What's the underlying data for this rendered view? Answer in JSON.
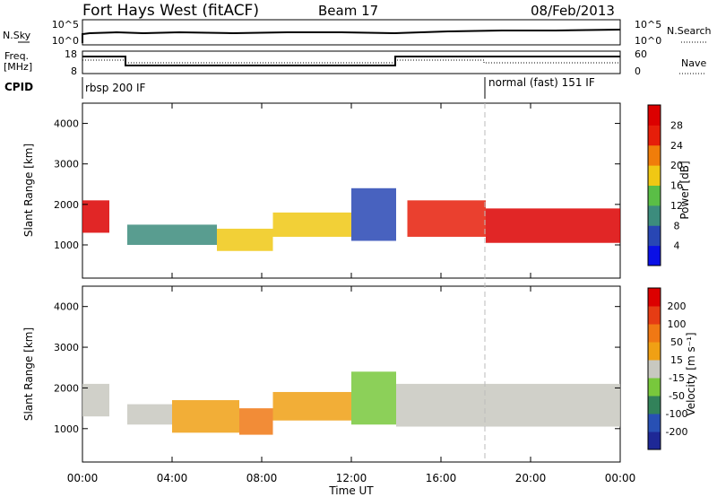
{
  "header": {
    "station": "Fort Hays West (fitACF)",
    "beam": "Beam 17",
    "date": "08/Feb/2013"
  },
  "top_panels": {
    "nsky_label": "N.Sky",
    "nsky_ticks": [
      "10^5",
      "10^0"
    ],
    "nsearch_label": "N.Search",
    "nsearch_ticks": [
      "10^5",
      "10^0"
    ],
    "freq_label_1": "Freq.",
    "freq_label_2": "[MHz]",
    "freq_ticks": [
      "18",
      "8"
    ],
    "nave_label": "Nave",
    "nave_ticks": [
      "60",
      "0"
    ],
    "cpid_label": "CPID",
    "cpid_segments": [
      {
        "label": "rbsp 200 IF",
        "start_hour": 0,
        "end_hour": 18
      },
      {
        "label": "normal (fast) 151 IF",
        "start_hour": 18,
        "end_hour": 24
      }
    ]
  },
  "chart_data": [
    {
      "type": "heatmap",
      "panel": "power",
      "ylabel": "Slant Range [km]",
      "ylim": [
        180,
        4500
      ],
      "yticks": [
        "1000",
        "2000",
        "3000",
        "4000"
      ],
      "xlim_hours": [
        0,
        24
      ],
      "colorbar": {
        "label": "Power [dB]",
        "ticks": [
          "4",
          "8",
          "12",
          "16",
          "20",
          "24",
          "28"
        ],
        "colors": [
          "#0a10e6",
          "#2846b4",
          "#3c8c7d",
          "#5abe46",
          "#f0c814",
          "#f07d0a",
          "#e61e0a",
          "#dc0000"
        ]
      },
      "echo_bands": [
        {
          "start_hour": 0.0,
          "end_hour": 1.2,
          "range_low_km": 1300,
          "range_high_km": 2100,
          "level": 7
        },
        {
          "start_hour": 2.0,
          "end_hour": 6.0,
          "range_low_km": 1000,
          "range_high_km": 1500,
          "level": 2
        },
        {
          "start_hour": 6.0,
          "end_hour": 8.5,
          "range_low_km": 850,
          "range_high_km": 1400,
          "level": 4
        },
        {
          "start_hour": 8.5,
          "end_hour": 12.0,
          "range_low_km": 1200,
          "range_high_km": 1800,
          "level": 4
        },
        {
          "start_hour": 12.0,
          "end_hour": 14.0,
          "range_low_km": 1100,
          "range_high_km": 2400,
          "level": 1
        },
        {
          "start_hour": 14.5,
          "end_hour": 18.0,
          "range_low_km": 1200,
          "range_high_km": 2100,
          "level": 6
        },
        {
          "start_hour": 18.0,
          "end_hour": 24.0,
          "range_low_km": 1050,
          "range_high_km": 1900,
          "level": 7
        }
      ]
    },
    {
      "type": "heatmap",
      "panel": "velocity",
      "ylabel": "Slant Range [km]",
      "ylim": [
        180,
        4500
      ],
      "yticks": [
        "1000",
        "2000",
        "3000",
        "4000"
      ],
      "xlabel": "Time UT",
      "xticks": [
        "00:00",
        "04:00",
        "08:00",
        "12:00",
        "16:00",
        "20:00",
        "00:00"
      ],
      "xlim_hours": [
        0,
        24
      ],
      "colorbar": {
        "label": "Velocity [m s⁻¹]",
        "ticks": [
          "200",
          "100",
          "50",
          "15",
          "-15",
          "-50",
          "-100",
          "-200"
        ],
        "colors": [
          "#1e2896",
          "#2850b4",
          "#32825a",
          "#78c83c",
          "#c8c8c0",
          "#f0a014",
          "#f07814",
          "#e63c14",
          "#dc0000"
        ]
      },
      "echo_bands": [
        {
          "start_hour": 0.0,
          "end_hour": 1.2,
          "range_low_km": 1300,
          "range_high_km": 2100,
          "level": 4
        },
        {
          "start_hour": 2.0,
          "end_hour": 4.0,
          "range_low_km": 1100,
          "range_high_km": 1600,
          "level": 4
        },
        {
          "start_hour": 4.0,
          "end_hour": 7.0,
          "range_low_km": 900,
          "range_high_km": 1700,
          "level": 5
        },
        {
          "start_hour": 7.0,
          "end_hour": 8.5,
          "range_low_km": 850,
          "range_high_km": 1500,
          "level": 6
        },
        {
          "start_hour": 8.5,
          "end_hour": 12.0,
          "range_low_km": 1200,
          "range_high_km": 1900,
          "level": 5
        },
        {
          "start_hour": 12.0,
          "end_hour": 14.0,
          "range_low_km": 1100,
          "range_high_km": 2400,
          "level": 3
        },
        {
          "start_hour": 14.0,
          "end_hour": 24.0,
          "range_low_km": 1050,
          "range_high_km": 2100,
          "level": 4
        }
      ]
    }
  ]
}
